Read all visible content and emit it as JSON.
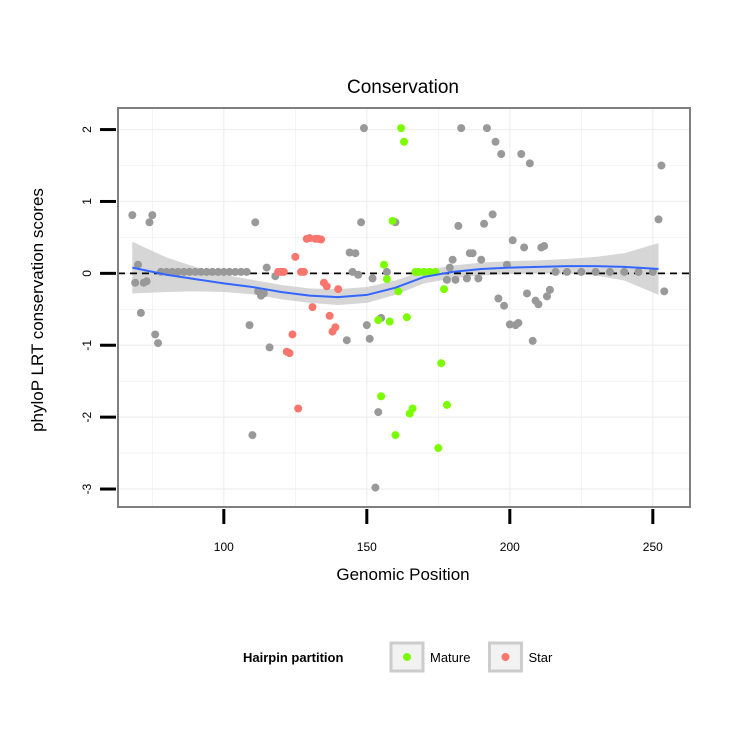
{
  "chart_data": {
    "type": "scatter",
    "title": "Conservation",
    "xlabel": "Genomic Position",
    "ylabel": "phyloP LRT conservation scores",
    "xlim": [
      63,
      263
    ],
    "ylim": [
      -3.25,
      2.3
    ],
    "xticks": [
      100,
      150,
      200,
      250
    ],
    "yticks": [
      -3,
      -2,
      -1,
      0,
      1,
      2
    ],
    "grid": true,
    "reference_line": {
      "y": 0,
      "style": "dashed"
    },
    "legend": {
      "title": "Hairpin partition",
      "position": "bottom"
    },
    "colors": {
      "other": "#999999",
      "Mature": "#7cfc00",
      "Star": "#f8766d",
      "smooth": "#3366ff",
      "band": "#c8c8c8"
    },
    "series": [
      {
        "name": "",
        "values": [
          [
            68,
            0.81
          ],
          [
            69,
            -0.13
          ],
          [
            70,
            0.12
          ],
          [
            71,
            -0.55
          ],
          [
            72,
            -0.13
          ],
          [
            73,
            -0.11
          ],
          [
            74,
            0.71
          ],
          [
            75,
            0.81
          ],
          [
            76,
            -0.85
          ],
          [
            77,
            -0.97
          ],
          [
            78,
            0.02
          ],
          [
            80,
            0.02
          ],
          [
            82,
            0.02
          ],
          [
            84,
            0.02
          ],
          [
            86,
            0.02
          ],
          [
            88,
            0.02
          ],
          [
            90,
            0.02
          ],
          [
            92,
            0.02
          ],
          [
            94,
            0.02
          ],
          [
            96,
            0.02
          ],
          [
            98,
            0.02
          ],
          [
            100,
            0.02
          ],
          [
            102,
            0.02
          ],
          [
            104,
            0.02
          ],
          [
            106,
            0.02
          ],
          [
            108,
            0.02
          ],
          [
            109,
            -0.72
          ],
          [
            110,
            -2.25
          ],
          [
            111,
            0.71
          ],
          [
            112,
            -0.25
          ],
          [
            113,
            -0.31
          ],
          [
            114,
            -0.28
          ],
          [
            115,
            0.08
          ],
          [
            116,
            -1.03
          ],
          [
            118,
            -0.04
          ],
          [
            143,
            -0.93
          ],
          [
            144,
            0.29
          ],
          [
            145,
            0.02
          ],
          [
            146,
            0.28
          ],
          [
            147,
            -0.02
          ],
          [
            148,
            0.71
          ],
          [
            149,
            2.02
          ],
          [
            150,
            -0.72
          ],
          [
            151,
            -0.91
          ],
          [
            152,
            -0.07
          ],
          [
            153,
            -2.98
          ],
          [
            154,
            -1.93
          ],
          [
            155,
            -0.62
          ],
          [
            157,
            0.02
          ],
          [
            160,
            0.71
          ],
          [
            178,
            -0.09
          ],
          [
            179,
            0.08
          ],
          [
            180,
            0.19
          ],
          [
            181,
            -0.09
          ],
          [
            182,
            0.66
          ],
          [
            183,
            2.02
          ],
          [
            185,
            -0.07
          ],
          [
            186,
            0.28
          ],
          [
            187,
            0.28
          ],
          [
            189,
            -0.07
          ],
          [
            190,
            0.19
          ],
          [
            191,
            0.69
          ],
          [
            192,
            2.02
          ],
          [
            194,
            0.82
          ],
          [
            195,
            1.83
          ],
          [
            196,
            -0.35
          ],
          [
            197,
            1.66
          ],
          [
            198,
            -0.45
          ],
          [
            199,
            0.12
          ],
          [
            200,
            -0.71
          ],
          [
            201,
            0.46
          ],
          [
            202,
            -0.72
          ],
          [
            203,
            -0.69
          ],
          [
            204,
            1.66
          ],
          [
            205,
            0.36
          ],
          [
            206,
            -0.28
          ],
          [
            207,
            1.53
          ],
          [
            208,
            -0.94
          ],
          [
            209,
            -0.38
          ],
          [
            210,
            -0.43
          ],
          [
            211,
            0.36
          ],
          [
            212,
            0.38
          ],
          [
            213,
            -0.32
          ],
          [
            214,
            -0.23
          ],
          [
            216,
            0.02
          ],
          [
            220,
            0.02
          ],
          [
            225,
            0.02
          ],
          [
            230,
            0.02
          ],
          [
            235,
            0.02
          ],
          [
            240,
            0.02
          ],
          [
            245,
            0.02
          ],
          [
            250,
            0.02
          ],
          [
            252,
            0.75
          ],
          [
            253,
            1.5
          ],
          [
            254,
            -0.25
          ]
        ]
      },
      {
        "name": "Mature",
        "values": [
          [
            154,
            -0.65
          ],
          [
            155,
            -1.71
          ],
          [
            156,
            0.12
          ],
          [
            157,
            -0.08
          ],
          [
            158,
            -0.67
          ],
          [
            159,
            0.73
          ],
          [
            160,
            -2.25
          ],
          [
            161,
            -0.25
          ],
          [
            162,
            2.02
          ],
          [
            163,
            1.83
          ],
          [
            164,
            -0.61
          ],
          [
            165,
            -1.95
          ],
          [
            166,
            -1.88
          ],
          [
            167,
            0.02
          ],
          [
            168,
            0.02
          ],
          [
            170,
            0.02
          ],
          [
            172,
            0.02
          ],
          [
            174,
            0.02
          ],
          [
            175,
            -2.43
          ],
          [
            176,
            -1.25
          ],
          [
            177,
            -0.22
          ],
          [
            178,
            -1.83
          ]
        ]
      },
      {
        "name": "Star",
        "values": [
          [
            119,
            0.02
          ],
          [
            120,
            0.02
          ],
          [
            121,
            0.02
          ],
          [
            122,
            -1.09
          ],
          [
            123,
            -1.11
          ],
          [
            124,
            -0.85
          ],
          [
            125,
            0.23
          ],
          [
            126,
            -1.88
          ],
          [
            127,
            0.02
          ],
          [
            128,
            0.02
          ],
          [
            129,
            0.48
          ],
          [
            130,
            0.49
          ],
          [
            131,
            -0.47
          ],
          [
            132,
            0.48
          ],
          [
            133,
            0.48
          ],
          [
            134,
            0.47
          ],
          [
            135,
            -0.13
          ],
          [
            136,
            -0.18
          ],
          [
            137,
            -0.59
          ],
          [
            138,
            -0.81
          ],
          [
            139,
            -0.75
          ],
          [
            140,
            -0.22
          ]
        ]
      }
    ],
    "smooth": {
      "name": "",
      "x": [
        68,
        80,
        90,
        100,
        110,
        120,
        130,
        140,
        150,
        160,
        170,
        180,
        190,
        200,
        210,
        220,
        230,
        240,
        252
      ],
      "y": [
        0.08,
        -0.02,
        -0.08,
        -0.14,
        -0.19,
        -0.26,
        -0.31,
        -0.33,
        -0.3,
        -0.2,
        -0.05,
        0.02,
        0.06,
        0.08,
        0.09,
        0.1,
        0.1,
        0.09,
        0.06
      ],
      "ci_half_width": [
        0.36,
        0.24,
        0.17,
        0.12,
        0.1,
        0.1,
        0.1,
        0.11,
        0.11,
        0.1,
        0.09,
        0.09,
        0.09,
        0.09,
        0.09,
        0.1,
        0.13,
        0.19,
        0.36
      ]
    }
  }
}
